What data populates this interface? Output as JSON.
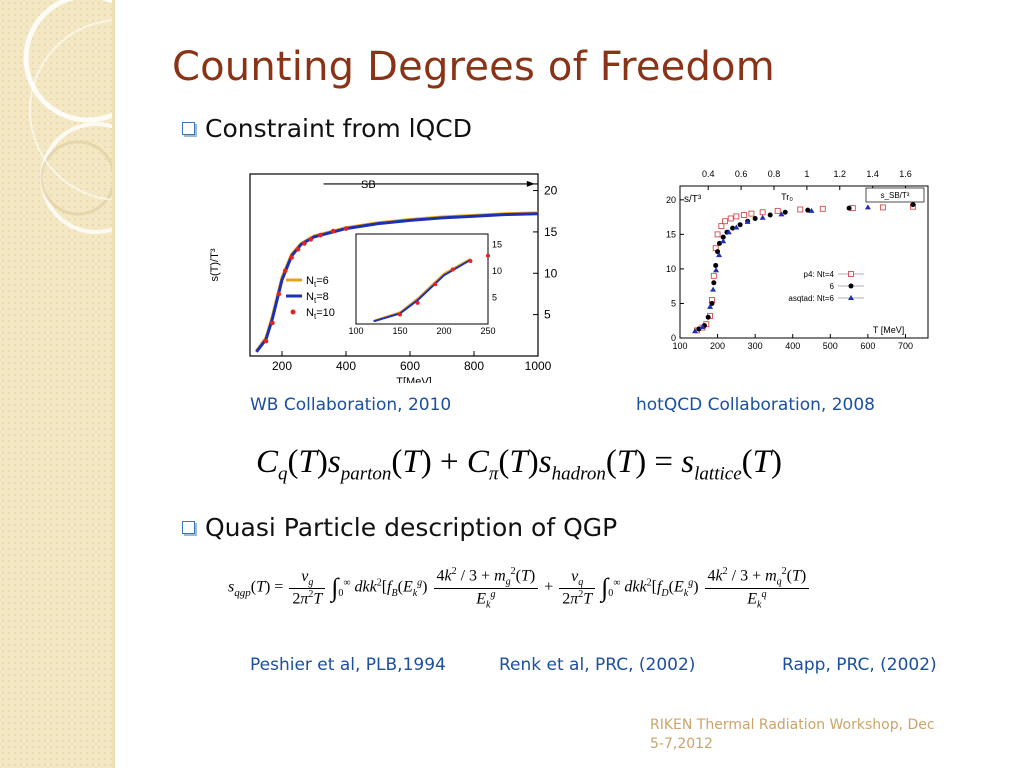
{
  "slide": {
    "title": "Counting Degrees of Freedom",
    "bullets": [
      "Constraint from lQCD",
      "Quasi Particle description of QGP"
    ],
    "captions": {
      "wb": "WB Collaboration, 2010",
      "hotqcd": "hotQCD Collaboration, 2008",
      "peshier": "Peshier et al, PLB,1994",
      "renk": "Renk et al, PRC, (2002)",
      "rapp": "Rapp, PRC, (2002)"
    },
    "footer": "RIKEN Thermal Radiation Workshop, Dec 5-7,2012"
  },
  "chart_data": [
    {
      "type": "line",
      "ylabel": "s(T)/T³",
      "xlabel": "T[MeV]",
      "xlim": [
        100,
        1000
      ],
      "ylim": [
        0,
        22
      ],
      "xticks": [
        "200",
        "400",
        "600",
        "800",
        "1000"
      ],
      "yticks": [
        "5",
        "10",
        "15",
        "20"
      ],
      "annotation": "SB",
      "sb_value": 20.8,
      "series": [
        {
          "name": "Nt=6",
          "color": "#e8a21a",
          "x": [
            120,
            150,
            170,
            200,
            230,
            260,
            300,
            400,
            500,
            600,
            700,
            800,
            900,
            1000
          ],
          "y": [
            0.6,
            2.2,
            4.8,
            9.5,
            12.3,
            13.6,
            14.5,
            15.5,
            16.1,
            16.5,
            16.8,
            17.0,
            17.2,
            17.3
          ]
        },
        {
          "name": "Nt=8",
          "color": "#1c2fb5",
          "x": [
            120,
            150,
            170,
            200,
            230,
            260,
            300,
            400,
            500,
            600,
            700,
            800,
            900,
            1000
          ],
          "y": [
            0.5,
            2.0,
            4.5,
            9.2,
            12.1,
            13.5,
            14.4,
            15.4,
            16.0,
            16.4,
            16.7,
            16.9,
            17.1,
            17.2
          ]
        },
        {
          "name": "Nt=10",
          "color": "#e52222",
          "x": [
            150,
            170,
            190,
            210,
            230,
            250,
            270,
            290,
            320,
            360,
            400
          ],
          "y": [
            1.8,
            4.0,
            7.5,
            10.3,
            11.9,
            12.9,
            13.6,
            14.1,
            14.6,
            15.1,
            15.4
          ]
        }
      ],
      "inset": {
        "xlim": [
          100,
          250
        ],
        "ylim": [
          0,
          17
        ],
        "xticks": [
          "100",
          "150",
          "200",
          "250"
        ],
        "yticks": [
          "5",
          "10",
          "15"
        ]
      }
    },
    {
      "type": "scatter",
      "ylabel": "s/T³",
      "xlabel": "T [MeV]",
      "top_axis_label": "Tr₀",
      "sb_label": "s_SB/T³",
      "xlim": [
        100,
        760
      ],
      "ylim": [
        0,
        22
      ],
      "xticks": [
        "100",
        "200",
        "300",
        "400",
        "500",
        "600",
        "700"
      ],
      "yticks": [
        "0",
        "5",
        "10",
        "15",
        "20"
      ],
      "top_ticks": [
        "0.4",
        "0.6",
        "0.8",
        "1",
        "1.2",
        "1.4",
        "1.6"
      ],
      "series": [
        {
          "name": "p4: Nt=4",
          "marker": "square-open",
          "color": "#d44c4c",
          "x": [
            145,
            160,
            170,
            180,
            185,
            190,
            195,
            200,
            210,
            220,
            235,
            250,
            270,
            290,
            320,
            360,
            420,
            480,
            560,
            640,
            720
          ],
          "y": [
            1.1,
            1.5,
            2.0,
            3.2,
            5.5,
            9.0,
            13.0,
            15.0,
            16.2,
            16.9,
            17.3,
            17.6,
            17.8,
            18.0,
            18.2,
            18.4,
            18.6,
            18.7,
            18.8,
            18.9,
            19.0
          ]
        },
        {
          "name": "6",
          "marker": "circle-filled",
          "color": "#000000",
          "x": [
            150,
            165,
            175,
            185,
            190,
            195,
            200,
            205,
            215,
            225,
            240,
            260,
            280,
            300,
            340,
            380,
            440,
            550,
            720
          ],
          "y": [
            1.3,
            1.8,
            3.0,
            5.0,
            8.0,
            10.5,
            12.5,
            13.7,
            14.6,
            15.3,
            15.9,
            16.4,
            16.9,
            17.3,
            17.8,
            18.2,
            18.5,
            18.8,
            19.3
          ]
        },
        {
          "name": "asqtad: Nt=6",
          "marker": "triangle-filled",
          "color": "#1c2fb5",
          "x": [
            140,
            160,
            180,
            188,
            196,
            204,
            215,
            230,
            250,
            280,
            320,
            370,
            450,
            600
          ],
          "y": [
            1.0,
            1.6,
            4.5,
            7.0,
            9.8,
            12.0,
            14.0,
            15.3,
            16.0,
            16.8,
            17.4,
            17.9,
            18.4,
            18.9
          ]
        }
      ]
    }
  ]
}
